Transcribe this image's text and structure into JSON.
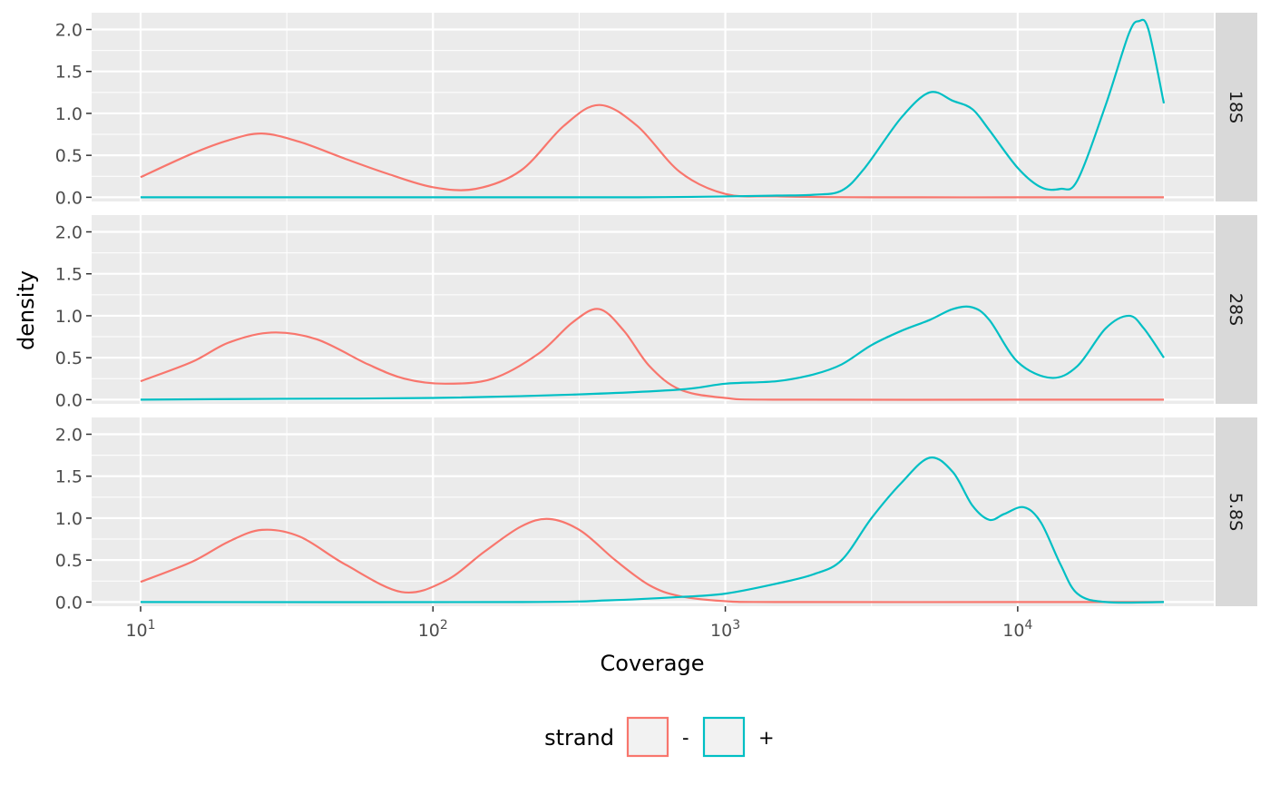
{
  "chart_data": {
    "type": "line",
    "xlabel": "Coverage",
    "ylabel": "density",
    "x_scale": "log10",
    "xlim": [
      10,
      31623
    ],
    "ylim": [
      -0.05,
      2.2
    ],
    "x_ticks": [
      10,
      100,
      1000,
      10000
    ],
    "x_tick_base": "10",
    "x_tick_exponents": [
      "1",
      "2",
      "3",
      "4"
    ],
    "y_ticks": [
      0,
      0.5,
      1,
      1.5,
      2
    ],
    "y_tick_labels": [
      "0.0",
      "0.5",
      "1.0",
      "1.5",
      "2.0"
    ],
    "grid": true,
    "legend": {
      "title": "strand",
      "position": "bottom",
      "entries": [
        {
          "label": "-",
          "color": "#F8766D"
        },
        {
          "label": "+",
          "color": "#00BFC4"
        }
      ]
    },
    "panels": [
      {
        "strip": "18S",
        "series": [
          {
            "name": "-",
            "color": "#F8766D",
            "x": [
              10,
              15,
              20,
              26,
              35,
              50,
              70,
              100,
              140,
              200,
              280,
              370,
              500,
              700,
              1000,
              1500,
              3162,
              10000,
              31623
            ],
            "y": [
              0.24,
              0.52,
              0.68,
              0.76,
              0.66,
              0.46,
              0.28,
              0.12,
              0.1,
              0.32,
              0.85,
              1.1,
              0.85,
              0.3,
              0.04,
              0.01,
              0.0,
              0.0,
              0.0
            ]
          },
          {
            "name": "+",
            "color": "#00BFC4",
            "x": [
              10,
              100,
              500,
              1000,
              1500,
              2000,
              2500,
              3000,
              4000,
              5000,
              6000,
              7000,
              8000,
              10000,
              12000,
              14000,
              16000,
              20000,
              24000,
              26000,
              28000,
              31623
            ],
            "y": [
              0.0,
              0.0,
              0.0,
              0.01,
              0.02,
              0.03,
              0.08,
              0.35,
              0.95,
              1.25,
              1.15,
              1.05,
              0.8,
              0.35,
              0.12,
              0.1,
              0.2,
              1.1,
              1.95,
              2.1,
              2.0,
              1.12
            ]
          }
        ]
      },
      {
        "strip": "28S",
        "series": [
          {
            "name": "-",
            "color": "#F8766D",
            "x": [
              10,
              15,
              20,
              28,
              40,
              60,
              80,
              110,
              160,
              230,
              300,
              370,
              450,
              550,
              700,
              1000,
              1500,
              10000,
              31623
            ],
            "y": [
              0.22,
              0.45,
              0.68,
              0.8,
              0.72,
              0.42,
              0.25,
              0.19,
              0.25,
              0.55,
              0.92,
              1.08,
              0.82,
              0.4,
              0.12,
              0.02,
              0.0,
              0.0,
              0.0
            ]
          },
          {
            "name": "+",
            "color": "#00BFC4",
            "x": [
              10,
              30,
              100,
              300,
              700,
              1000,
              1500,
              2000,
              2500,
              3162,
              4000,
              5000,
              6000,
              7000,
              8000,
              10000,
              13000,
              16000,
              20000,
              24000,
              27000,
              31623
            ],
            "y": [
              0.0,
              0.01,
              0.02,
              0.06,
              0.12,
              0.19,
              0.22,
              0.3,
              0.42,
              0.65,
              0.82,
              0.95,
              1.08,
              1.1,
              0.95,
              0.45,
              0.26,
              0.4,
              0.85,
              1.0,
              0.85,
              0.5
            ]
          }
        ]
      },
      {
        "strip": "5.8S",
        "series": [
          {
            "name": "-",
            "color": "#F8766D",
            "x": [
              10,
              15,
              20,
              26,
              35,
              50,
              78,
              110,
              150,
              200,
              250,
              320,
              420,
              550,
              700,
              1000,
              1500,
              10000,
              31623
            ],
            "y": [
              0.24,
              0.48,
              0.72,
              0.86,
              0.78,
              0.45,
              0.12,
              0.25,
              0.6,
              0.9,
              0.99,
              0.85,
              0.5,
              0.2,
              0.07,
              0.01,
              0.0,
              0.0,
              0.0
            ]
          },
          {
            "name": "+",
            "color": "#00BFC4",
            "x": [
              10,
              200,
              400,
              700,
              1000,
              1500,
              2000,
              2500,
              3162,
              4000,
              5000,
              6000,
              7000,
              8000,
              9000,
              10500,
              12000,
              14000,
              16000,
              20000,
              31623
            ],
            "y": [
              0.0,
              0.0,
              0.02,
              0.06,
              0.1,
              0.22,
              0.33,
              0.5,
              1.0,
              1.42,
              1.72,
              1.55,
              1.15,
              0.98,
              1.05,
              1.13,
              0.95,
              0.45,
              0.1,
              0.0,
              0.0
            ]
          }
        ]
      }
    ]
  }
}
